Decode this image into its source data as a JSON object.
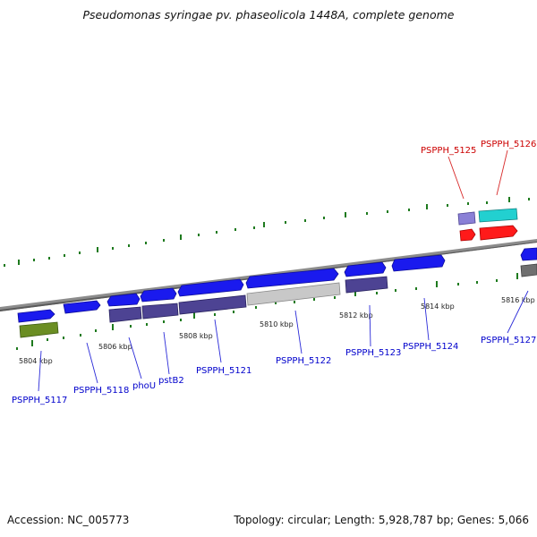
{
  "title": "Pseudomonas syringae pv. phaseolicola 1448A, complete genome",
  "footer": {
    "accession": "Accession: NC_005773",
    "topology": "Topology: circular; Length: 5,928,787 bp; Genes: 5,066"
  },
  "colors": {
    "backbone": "#8c8c8c",
    "gene_blue": "#1a1aee",
    "gene_purple": "#4d4393",
    "gene_lavender": "#8a80d6",
    "gene_olive": "#6b8e23",
    "gene_gray": "#c8c8c8",
    "gene_darkgray": "#6f6f6f",
    "gene_red": "#ff1a1a",
    "gene_cyan": "#22d0d0",
    "tick_green": "#1e7a1e",
    "label_blue": "#0000cc",
    "label_red": "#cc0000"
  },
  "scale": {
    "unit": "kbp",
    "ticks": [
      "5804 kbp",
      "5806 kbp",
      "5808 kbp",
      "5810 kbp",
      "5812 kbp",
      "5814 kbp",
      "5816 kbp"
    ]
  },
  "genes": [
    {
      "id": "PSPPH_5117",
      "label": "PSPPH_5117",
      "label_color": "blue"
    },
    {
      "id": "PSPPH_5118",
      "label": "PSPPH_5118",
      "label_color": "blue"
    },
    {
      "id": "phoU",
      "label": "phoU",
      "label_color": "blue"
    },
    {
      "id": "pstB2",
      "label": "pstB2",
      "label_color": "blue"
    },
    {
      "id": "PSPPH_5121",
      "label": "PSPPH_5121",
      "label_color": "blue"
    },
    {
      "id": "PSPPH_5122",
      "label": "PSPPH_5122",
      "label_color": "blue"
    },
    {
      "id": "PSPPH_5123",
      "label": "PSPPH_5123",
      "label_color": "blue"
    },
    {
      "id": "PSPPH_5124",
      "label": "PSPPH_5124",
      "label_color": "blue"
    },
    {
      "id": "PSPPH_5125",
      "label": "PSPPH_5125",
      "label_color": "red"
    },
    {
      "id": "PSPPH_5126",
      "label": "PSPPH_5126",
      "label_color": "red"
    },
    {
      "id": "PSPPH_5127",
      "label": "PSPPH_5127",
      "label_color": "blue"
    }
  ]
}
